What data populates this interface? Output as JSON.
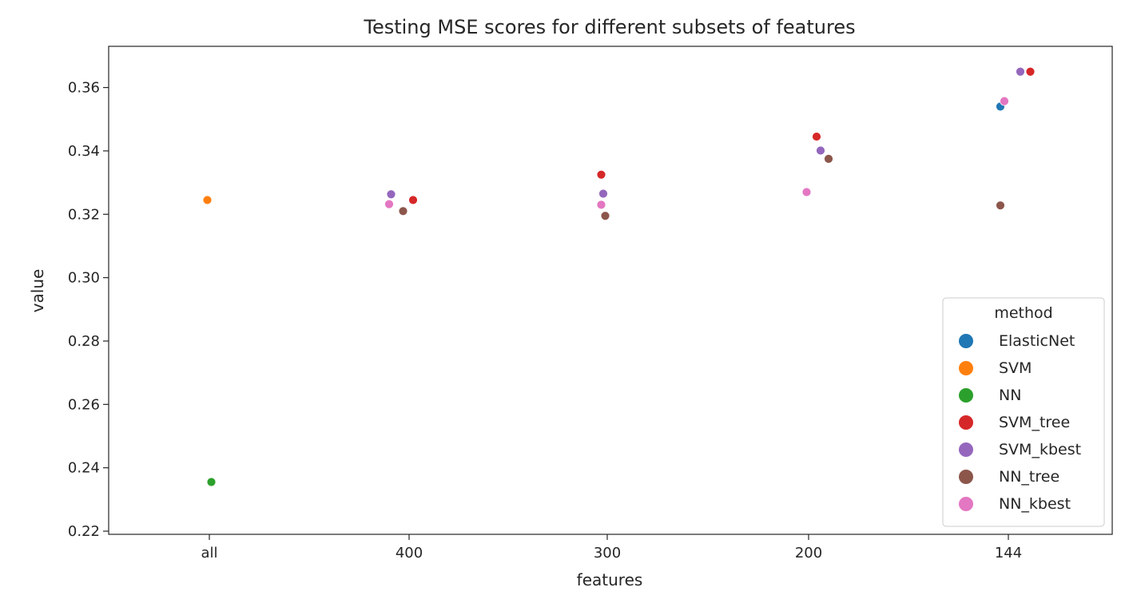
{
  "chart_data": {
    "type": "scatter",
    "title": "Testing MSE scores for different subsets of features",
    "xlabel": "features",
    "ylabel": "value",
    "categories": [
      "all",
      "400",
      "300",
      "200",
      "144"
    ],
    "ylim": [
      0.219,
      0.373
    ],
    "yticks": [
      0.22,
      0.24,
      0.26,
      0.28,
      0.3,
      0.32,
      0.34,
      0.36
    ],
    "ytick_labels": [
      "0.22",
      "0.24",
      "0.26",
      "0.28",
      "0.30",
      "0.32",
      "0.34",
      "0.36"
    ],
    "grid": false,
    "legend": {
      "title": "method",
      "position": "lower-right"
    },
    "series": [
      {
        "name": "ElasticNet",
        "color": "#1f77b4",
        "points": [
          {
            "x": "144",
            "y": 0.354,
            "jitter": -0.04
          }
        ]
      },
      {
        "name": "SVM",
        "color": "#ff7f0e",
        "points": [
          {
            "x": "all",
            "y": 0.3245,
            "jitter": -0.01
          }
        ]
      },
      {
        "name": "NN",
        "color": "#2ca02c",
        "points": [
          {
            "x": "all",
            "y": 0.2355,
            "jitter": 0.01
          }
        ]
      },
      {
        "name": "SVM_tree",
        "color": "#d62728",
        "points": [
          {
            "x": "400",
            "y": 0.3245,
            "jitter": 0.02
          },
          {
            "x": "300",
            "y": 0.3325,
            "jitter": -0.03
          },
          {
            "x": "200",
            "y": 0.3445,
            "jitter": 0.04
          },
          {
            "x": "144",
            "y": 0.365,
            "jitter": 0.11
          }
        ]
      },
      {
        "name": "SVM_kbest",
        "color": "#9467bd",
        "points": [
          {
            "x": "400",
            "y": 0.3263,
            "jitter": -0.09
          },
          {
            "x": "300",
            "y": 0.3265,
            "jitter": -0.02
          },
          {
            "x": "200",
            "y": 0.3401,
            "jitter": 0.06
          },
          {
            "x": "144",
            "y": 0.365,
            "jitter": 0.06
          }
        ]
      },
      {
        "name": "NN_tree",
        "color": "#8c564b",
        "points": [
          {
            "x": "400",
            "y": 0.321,
            "jitter": -0.03
          },
          {
            "x": "300",
            "y": 0.3195,
            "jitter": -0.01
          },
          {
            "x": "200",
            "y": 0.3375,
            "jitter": 0.1
          },
          {
            "x": "144",
            "y": 0.3228,
            "jitter": -0.04
          }
        ]
      },
      {
        "name": "NN_kbest",
        "color": "#e377c2",
        "points": [
          {
            "x": "400",
            "y": 0.3232,
            "jitter": -0.1
          },
          {
            "x": "300",
            "y": 0.323,
            "jitter": -0.03
          },
          {
            "x": "200",
            "y": 0.327,
            "jitter": -0.01
          },
          {
            "x": "144",
            "y": 0.3557,
            "jitter": -0.02
          }
        ]
      }
    ]
  }
}
